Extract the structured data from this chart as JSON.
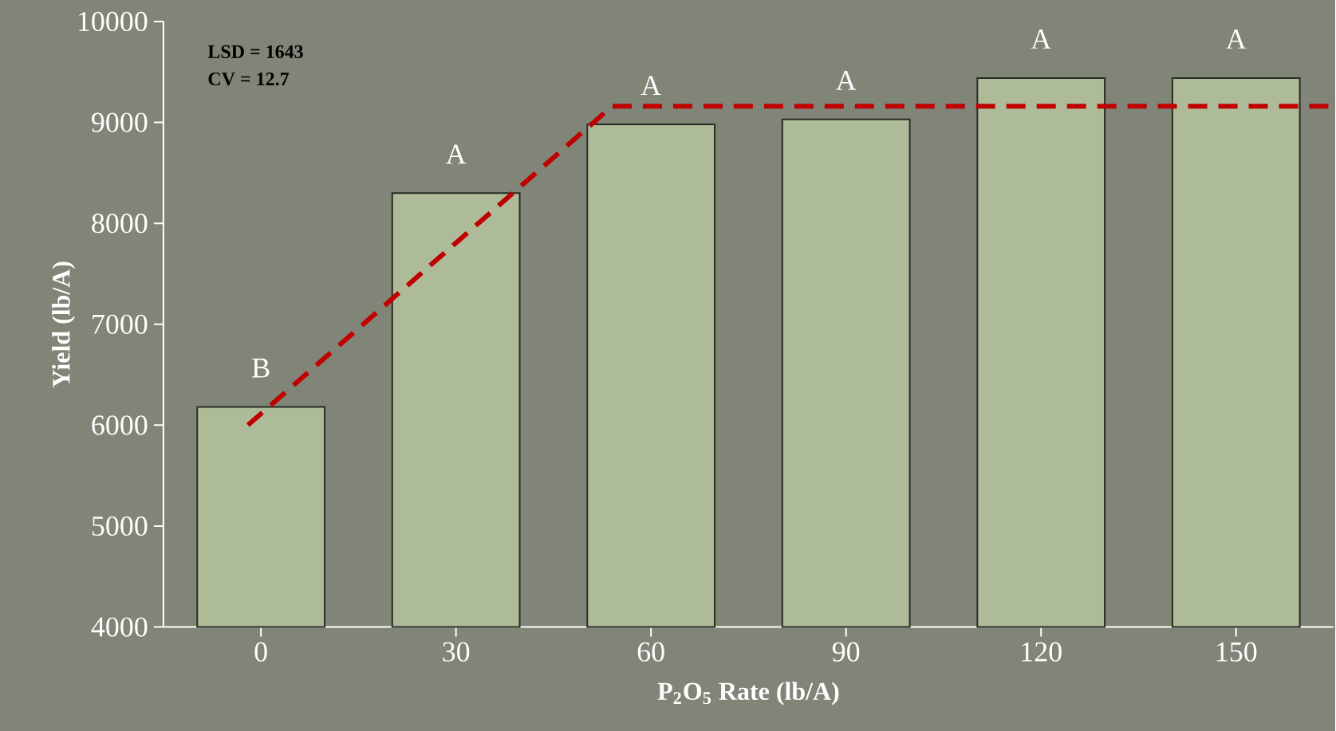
{
  "chart_data": {
    "type": "bar",
    "xlabel": "P$_{2}$O$_{5}$ Rate (lb/A)",
    "ylabel": "Yield (lb/A)",
    "x": [
      0,
      30,
      60,
      90,
      120,
      150
    ],
    "series": [
      {
        "color": "#adbb98",
        "values": [
          6180,
          8300,
          8980,
          9030,
          9440,
          9440
        ],
        "value_labels": [
          "B",
          "A",
          "A",
          "A",
          "A",
          "A"
        ]
      },
      {
        "type": "line",
        "color": "#c00000",
        "line_style": "dashed",
        "x": [
          -2,
          54,
          165
        ],
        "values": [
          6000,
          9160,
          9160
        ]
      }
    ],
    "xlim": [
      -15,
      165
    ],
    "xticks": [
      0,
      30,
      60,
      90,
      120,
      150
    ],
    "ylim": [
      4000,
      10000
    ],
    "yticks": [
      4000,
      5000,
      6000,
      7000,
      8000,
      9000,
      10000
    ],
    "annotations": [
      "LSD = 1643",
      "CV = 12.7"
    ]
  }
}
